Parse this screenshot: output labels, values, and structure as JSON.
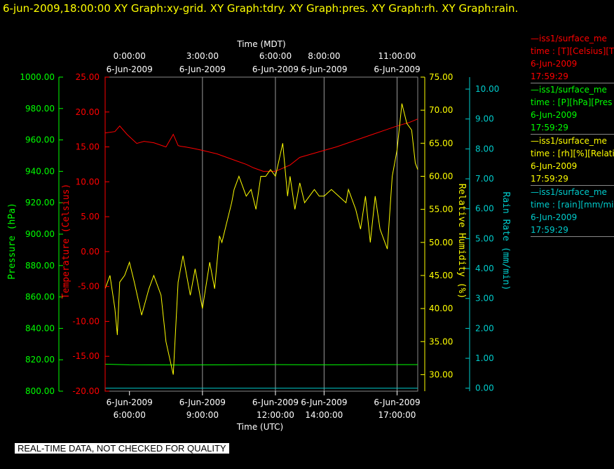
{
  "header": {
    "title": "6-jun-2009,18:00:00  XY Graph:xy-grid.  XY Graph:tdry.  XY Graph:pres.  XY Graph:rh.  XY Graph:rain."
  },
  "legend": [
    {
      "line1": "—iss1/surface_me",
      "line2": "time : [T][Celsius][T",
      "line3": "6-Jun-2009",
      "line4": "17:59:29",
      "color": "#ff0000"
    },
    {
      "line1": "—iss1/surface_me",
      "line2": "time : [P][hPa][Pres",
      "line3": "6-Jun-2009",
      "line4": "17:59:29",
      "color": "#00ff00"
    },
    {
      "line1": "—iss1/surface_me",
      "line2": "time : [rh][%][Relati",
      "line3": "6-Jun-2009",
      "line4": "17:59:29",
      "color": "#ffff00"
    },
    {
      "line1": "—iss1/surface_me",
      "line2": "time : [rain][mm/mir",
      "line3": "6-Jun-2009",
      "line4": "17:59:29",
      "color": "#00cccc"
    }
  ],
  "footer": {
    "text": "REAL-TIME DATA, NOT CHECKED FOR QUALITY"
  },
  "chart_data": {
    "type": "line",
    "x_range_utc_hours": [
      5.0,
      17.85
    ],
    "top_axis": {
      "label": "Time (MDT)",
      "ticks": [
        {
          "t": 6.0,
          "line1": "0:00:00",
          "line2": "6-Jun-2009"
        },
        {
          "t": 9.0,
          "line1": "3:00:00",
          "line2": "6-Jun-2009"
        },
        {
          "t": 12.0,
          "line1": "6:00:00",
          "line2": "6-Jun-2009"
        },
        {
          "t": 14.0,
          "line1": "8:00:00",
          "line2": "6-Jun-2009"
        },
        {
          "t": 17.0,
          "line1": "11:00:00",
          "line2": "6-Jun-2009"
        }
      ]
    },
    "bottom_axis": {
      "label": "Time (UTC)",
      "ticks": [
        {
          "t": 6.0,
          "line1": "6-Jun-2009",
          "line2": "6:00:00"
        },
        {
          "t": 9.0,
          "line1": "6-Jun-2009",
          "line2": "9:00:00"
        },
        {
          "t": 12.0,
          "line1": "6-Jun-2009",
          "line2": "12:00:00"
        },
        {
          "t": 14.0,
          "line1": "6-Jun-2009",
          "line2": "14:00:00"
        },
        {
          "t": 17.0,
          "line1": "6-Jun-2009",
          "line2": "17:00:00"
        }
      ]
    },
    "grid_lines_x": [
      9.0,
      12.0,
      14.0,
      17.0
    ],
    "axes": {
      "pressure": {
        "label": "Pressure (hPa)",
        "color": "#00ff00",
        "range": [
          800,
          1000
        ],
        "ticks": [
          "800.00",
          "820.00",
          "840.00",
          "860.00",
          "880.00",
          "900.00",
          "920.00",
          "940.00",
          "960.00",
          "980.00",
          "1000.00"
        ]
      },
      "temperature": {
        "label": "Temperature (Celsius)",
        "color": "#ff0000",
        "range": [
          -20,
          25
        ],
        "ticks": [
          "-20.00",
          "-15.00",
          "-10.00",
          "-5.00",
          "0.00",
          "5.00",
          "10.00",
          "15.00",
          "20.00",
          "25.00"
        ]
      },
      "humidity": {
        "label": "Relative Humidity (%)",
        "color": "#ffff00",
        "range": [
          27.5,
          75
        ],
        "ticks": [
          "30.00",
          "35.00",
          "40.00",
          "45.00",
          "50.00",
          "55.00",
          "60.00",
          "65.00",
          "70.00",
          "75.00"
        ]
      },
      "rain": {
        "label": "Rain Rate (mm/min)",
        "color": "#00cccc",
        "range": [
          -0.1,
          10.4
        ],
        "ticks": [
          "0.00",
          "1.00",
          "2.00",
          "3.00",
          "4.00",
          "5.00",
          "6.00",
          "7.00",
          "8.00",
          "9.00",
          "10.00"
        ]
      }
    },
    "series": [
      {
        "name": "iss1/surface_met T (Celsius)",
        "color": "#ff0000",
        "axis": "temperature",
        "x": [
          5.0,
          5.4,
          5.6,
          5.9,
          6.3,
          6.6,
          7.0,
          7.5,
          7.8,
          8.0,
          8.1,
          8.3,
          8.6,
          9.0,
          9.6,
          10.0,
          10.4,
          10.8,
          11.1,
          11.5,
          12.0,
          12.6,
          13.0,
          13.5,
          14.0,
          14.5,
          15.0,
          15.5,
          16.0,
          16.5,
          17.0,
          17.5,
          17.85
        ],
        "y": [
          17.0,
          17.2,
          18.0,
          16.8,
          15.5,
          15.8,
          15.6,
          15.0,
          16.8,
          15.2,
          15.1,
          15.0,
          14.8,
          14.5,
          14.0,
          13.5,
          13.0,
          12.5,
          12.0,
          11.5,
          11.5,
          12.4,
          13.5,
          14.0,
          14.5,
          15.0,
          15.6,
          16.2,
          16.8,
          17.4,
          18.0,
          18.5,
          19.0
        ]
      },
      {
        "name": "iss1/surface_met P (hPa)",
        "color": "#00ff00",
        "axis": "pressure",
        "x": [
          5.0,
          6.0,
          8.0,
          10.0,
          12.0,
          14.0,
          16.0,
          17.85
        ],
        "y": [
          817.2,
          816.8,
          816.7,
          816.8,
          816.9,
          816.8,
          816.9,
          816.9
        ]
      },
      {
        "name": "iss1/surface_met rh (%)",
        "color": "#ffff00",
        "axis": "humidity",
        "x": [
          5.0,
          5.2,
          5.4,
          5.5,
          5.6,
          5.8,
          6.0,
          6.2,
          6.5,
          6.8,
          7.0,
          7.3,
          7.5,
          7.8,
          8.0,
          8.2,
          8.5,
          8.7,
          9.0,
          9.3,
          9.5,
          9.7,
          9.8,
          10.0,
          10.2,
          10.3,
          10.5,
          10.8,
          11.0,
          11.2,
          11.4,
          11.6,
          11.8,
          12.0,
          12.3,
          12.5,
          12.6,
          12.8,
          13.0,
          13.2,
          13.4,
          13.6,
          13.8,
          14.0,
          14.3,
          14.6,
          14.9,
          15.0,
          15.3,
          15.5,
          15.7,
          15.9,
          16.1,
          16.3,
          16.6,
          16.8,
          17.0,
          17.2,
          17.4,
          17.6,
          17.75,
          17.85
        ],
        "y": [
          43,
          45,
          40,
          36,
          44,
          45,
          47,
          44,
          39,
          43,
          45,
          42,
          35,
          30,
          44,
          48,
          42,
          46,
          40,
          47,
          43,
          51,
          50,
          53,
          56,
          58,
          60,
          57,
          58,
          55,
          60,
          60,
          61,
          60,
          65,
          57,
          60,
          55,
          59,
          56,
          57,
          58,
          57,
          57,
          58,
          57,
          56,
          58,
          55,
          52,
          57,
          50,
          57,
          52,
          49,
          60,
          64,
          71,
          68,
          67,
          62,
          61
        ]
      },
      {
        "name": "iss1/surface_met rain (mm/min)",
        "color": "#00cccc",
        "axis": "rain",
        "x": [
          5.0,
          17.85
        ],
        "y": [
          0.0,
          0.0
        ]
      }
    ]
  }
}
